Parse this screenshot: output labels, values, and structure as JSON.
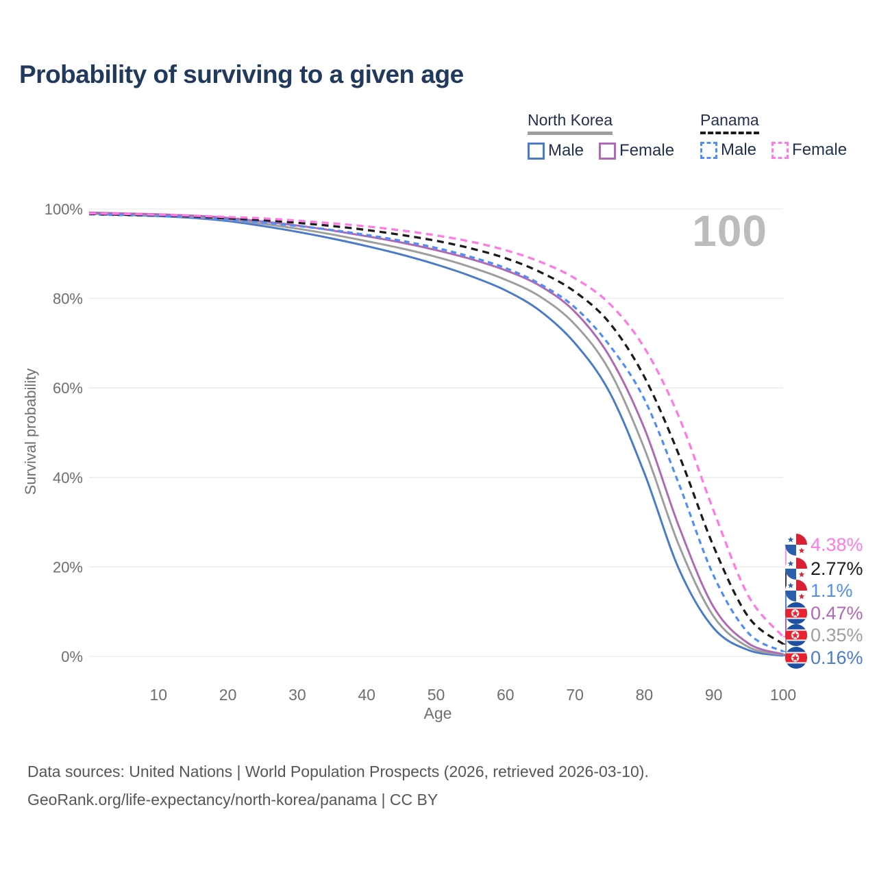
{
  "page": {
    "title": "Probability of surviving to a given age",
    "watermark_age": "100"
  },
  "legend": {
    "groups": [
      {
        "label": "North Korea",
        "style": "solid",
        "underline_color": "#9e9e9e",
        "items": [
          {
            "label": "Male"
          },
          {
            "label": "Female"
          }
        ]
      },
      {
        "label": "Panama",
        "style": "dashed",
        "underline_color": "#1c1c1c",
        "items": [
          {
            "label": "Male"
          },
          {
            "label": "Female"
          }
        ]
      }
    ]
  },
  "chart_data": {
    "type": "line",
    "title": "Probability of surviving to a given age",
    "xlabel": "Age",
    "ylabel": "Survival probability",
    "xlim": [
      0,
      100
    ],
    "ylim": [
      0,
      100
    ],
    "x_ticks": [
      10,
      20,
      30,
      40,
      50,
      60,
      70,
      80,
      90,
      100
    ],
    "y_ticks": [
      0,
      20,
      40,
      60,
      80,
      100
    ],
    "y_tick_suffix": "%",
    "grid": "horizontal",
    "legend_position": "top-right",
    "hover_age": 100,
    "x": [
      0,
      5,
      10,
      15,
      20,
      25,
      30,
      35,
      40,
      45,
      50,
      55,
      60,
      65,
      70,
      75,
      80,
      85,
      90,
      95,
      100
    ],
    "series": [
      {
        "id": "panama-female",
        "name": "Panama Female",
        "country": "Panama",
        "sex": "Female",
        "color": "#ff7ae3",
        "dash": "dashed",
        "dash_array": "10 7",
        "width": 3.3,
        "end_label": "4.38%",
        "flag": "panama",
        "values": [
          99.0,
          98.9,
          98.7,
          98.5,
          98.2,
          97.9,
          97.4,
          96.8,
          96.1,
          95.2,
          94.1,
          92.7,
          90.8,
          88.2,
          84.5,
          78.8,
          69.0,
          53.5,
          32.5,
          13.5,
          4.38
        ]
      },
      {
        "id": "panama-all",
        "name": "Panama",
        "country": "Panama",
        "sex": "All",
        "color": "#1c1c1c",
        "dash": "dashed",
        "dash_array": "10 7",
        "width": 3.3,
        "end_label": "2.77%",
        "flag": "panama",
        "values": [
          98.9,
          98.7,
          98.6,
          98.3,
          97.9,
          97.5,
          96.9,
          96.2,
          95.3,
          94.2,
          92.9,
          91.2,
          89.0,
          85.9,
          81.5,
          74.5,
          62.5,
          45.0,
          24.5,
          8.8,
          2.77
        ]
      },
      {
        "id": "panama-male",
        "name": "Panama Male",
        "country": "Panama",
        "sex": "Male",
        "color": "#4e8ef5",
        "dash": "dashed",
        "dash_array": "8 6",
        "width": 3.2,
        "end_label": "1.1%",
        "flag": "panama",
        "values": [
          98.8,
          98.6,
          98.4,
          98.1,
          97.6,
          97.0,
          96.2,
          95.3,
          94.2,
          92.9,
          91.3,
          89.3,
          86.8,
          83.2,
          78.0,
          69.5,
          57.5,
          38.5,
          18.0,
          5.2,
          1.1
        ]
      },
      {
        "id": "north-korea-female",
        "name": "North Korea Female",
        "country": "North Korea",
        "sex": "Female",
        "color": "#b069b4",
        "dash": "solid",
        "dash_array": "",
        "width": 3,
        "end_label": "0.47%",
        "flag": "north-korea",
        "values": [
          99.2,
          99.0,
          98.8,
          98.5,
          98.0,
          97.2,
          96.3,
          95.2,
          93.9,
          92.5,
          90.8,
          88.8,
          86.3,
          82.8,
          77.0,
          67.0,
          51.0,
          29.0,
          11.0,
          2.9,
          0.47
        ]
      },
      {
        "id": "north-korea-all",
        "name": "North Korea",
        "country": "North Korea",
        "sex": "All",
        "color": "#9e9e9e",
        "dash": "solid",
        "dash_array": "",
        "width": 3,
        "end_label": "0.35%",
        "flag": "north-korea",
        "values": [
          99.1,
          98.8,
          98.6,
          98.2,
          97.6,
          96.7,
          95.6,
          94.3,
          92.8,
          91.2,
          89.3,
          87.0,
          84.2,
          80.4,
          74.2,
          63.8,
          46.5,
          24.8,
          8.9,
          2.1,
          0.35
        ]
      },
      {
        "id": "north-korea-male",
        "name": "North Korea Male",
        "country": "North Korea",
        "sex": "Male",
        "color": "#4a7bc9",
        "dash": "solid",
        "dash_array": "",
        "width": 3,
        "end_label": "0.16%",
        "flag": "north-korea",
        "values": [
          99.0,
          98.7,
          98.4,
          98.0,
          97.3,
          96.2,
          94.9,
          93.4,
          91.7,
          89.8,
          87.6,
          85.0,
          81.8,
          77.2,
          70.0,
          59.0,
          41.0,
          19.5,
          6.3,
          1.4,
          0.16
        ]
      }
    ]
  },
  "footer": {
    "line1": "Data sources: United Nations | World Population Prospects (2026, retrieved 2026-03-10).",
    "line2": "GeoRank.org/life-expectancy/north-korea/panama | CC BY"
  }
}
